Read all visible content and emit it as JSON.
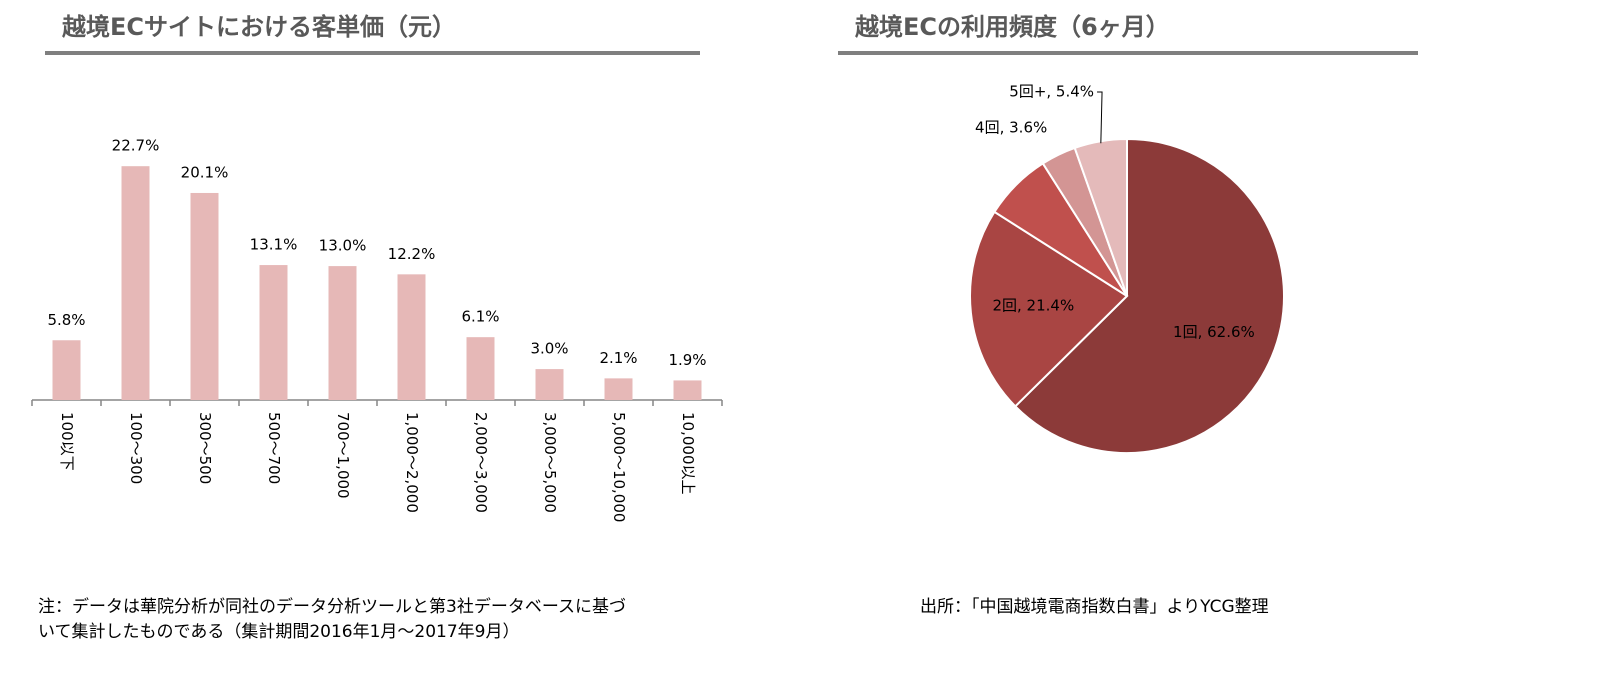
{
  "chart_data": [
    {
      "type": "bar",
      "title": "越境ECサイトにおける客単価（元）",
      "categories": [
        "100以下",
        "100～300",
        "300～500",
        "500～700",
        "700～1,000",
        "1,000～2,000",
        "2,000～3,000",
        "3,000～5,000",
        "5,000～10,000",
        "10,000以上"
      ],
      "values": [
        5.8,
        22.7,
        20.1,
        13.1,
        13.0,
        12.2,
        6.1,
        3.0,
        2.1,
        1.9
      ],
      "value_labels": [
        "5.8%",
        "22.7%",
        "20.1%",
        "13.1%",
        "13.0%",
        "12.2%",
        "6.1%",
        "3.0%",
        "2.1%",
        "1.9%"
      ],
      "color": "#e6b8b7",
      "note": [
        "注：データは華院分析が同社のデータ分析ツールと第3社データベースに基づ",
        "いて集計したものである（集計期間2016年1月～2017年9月）"
      ]
    },
    {
      "type": "pie",
      "title": "越境ECの利用頻度（6ヶ月）",
      "values": [
        62.6,
        21.4,
        7.0,
        3.6,
        5.4
      ],
      "value_labels": [
        "1回, 62.6%",
        "2回, 21.4%",
        null,
        "4回, 3.6%",
        "5回+, 5.4%"
      ],
      "colors": [
        "#8c3a39",
        "#a94543",
        "#c0504d",
        "#d39594",
        "#e4baba"
      ],
      "source": "出所：「中国越境電商指数白書」よりYCG整理"
    }
  ]
}
